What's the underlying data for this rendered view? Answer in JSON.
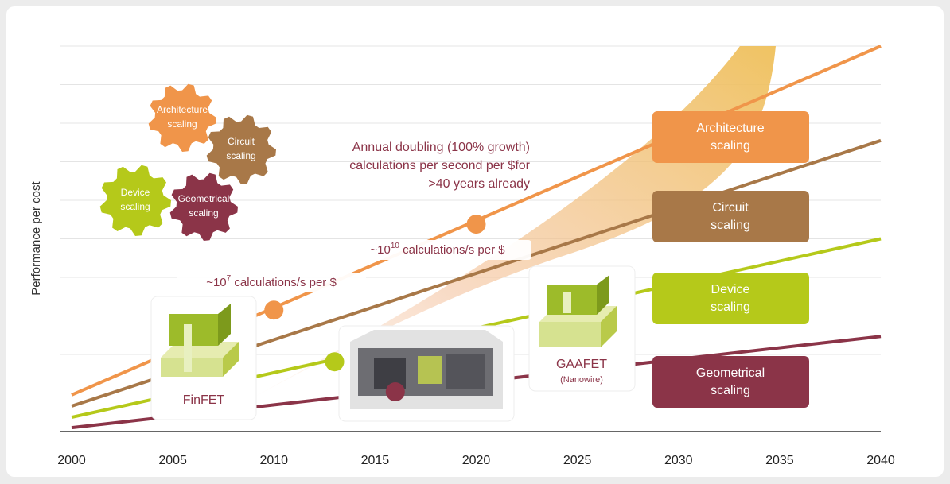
{
  "chart_data": {
    "type": "line",
    "y_label": "Performance per cost",
    "x": [
      2000,
      2040
    ],
    "xlim": [
      2000,
      2040
    ],
    "xticks": [
      2000,
      2005,
      2010,
      2015,
      2020,
      2025,
      2030,
      2035,
      2040
    ],
    "ylim": [
      0,
      10
    ],
    "grid": true,
    "series": [
      {
        "name": "Architecture scaling",
        "color": "#f0954a",
        "values": [
          0.95,
          10
        ]
      },
      {
        "name": "Circuit scaling",
        "color": "#a87848",
        "values": [
          0.66,
          7.55
        ]
      },
      {
        "name": "Device scaling",
        "color": "#b5c91a",
        "values": [
          0.37,
          5.0
        ]
      },
      {
        "name": "Geometrical scaling",
        "color": "#8b3448",
        "values": [
          0.1,
          2.47
        ]
      }
    ],
    "markers": [
      {
        "x": 2010,
        "y": 3.15,
        "color": "#f0954a"
      },
      {
        "x": 2020,
        "y": 5.38,
        "color": "#f0954a"
      },
      {
        "x": 2013,
        "y": 1.81,
        "color": "#b5c91a"
      },
      {
        "x": 2016,
        "y": 1.03,
        "color": "#8b3448"
      }
    ],
    "annotation": [
      "Annual doubling (100% growth)",
      "calculations per second per $for",
      ">40 years already"
    ],
    "callouts": [
      {
        "pre": "~10",
        "sup": "7",
        "post": " calculations/s per $"
      },
      {
        "pre": "~10",
        "sup": "10",
        "post": " calculations/s per $"
      }
    ],
    "pictures": {
      "finfet": "FinFET",
      "gaafet": "GAAFET",
      "gaafet_note": "(Nanowire)"
    }
  }
}
